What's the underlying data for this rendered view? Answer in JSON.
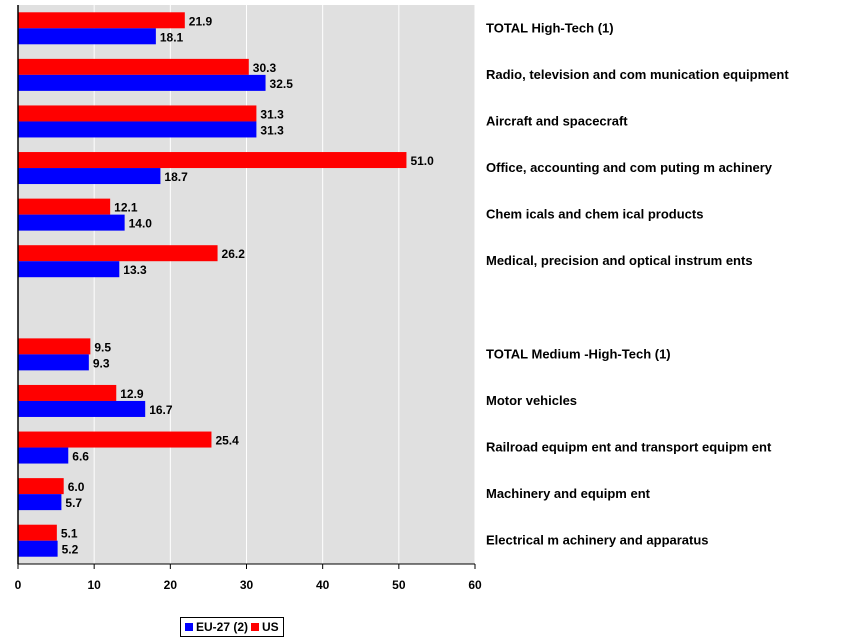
{
  "chart_data": {
    "type": "bar",
    "orientation": "horizontal",
    "categories": [
      "TOTAL High-Tech (1)",
      "Radio, television and com munication equipment",
      "Aircraft and spacecraft",
      "Office, accounting and com puting m achinery",
      "Chem icals and chem ical products",
      "Medical, precision and optical instrum ents",
      "",
      "TOTAL Medium -High-Tech (1)",
      "Motor vehicles",
      "Railroad equipm ent and transport equipm ent",
      "Machinery and equipm ent",
      "Electrical m achinery and apparatus"
    ],
    "series": [
      {
        "name": "US",
        "color": "#ff0000",
        "values": [
          21.9,
          30.3,
          31.3,
          51.0,
          12.1,
          26.2,
          null,
          9.5,
          12.9,
          25.4,
          6.0,
          5.1
        ],
        "labels": [
          "21.9",
          "30.3",
          "31.3",
          "51.0",
          "12.1",
          "26.2",
          "",
          "9.5",
          "12.9",
          "25.4",
          "6.0",
          "5.1"
        ]
      },
      {
        "name": "EU-27 (2)",
        "color": "#0000ff",
        "values": [
          18.1,
          32.5,
          31.3,
          18.7,
          14.0,
          13.3,
          null,
          9.3,
          16.7,
          6.6,
          5.7,
          5.2
        ],
        "labels": [
          "18.1",
          "32.5",
          "31.3",
          "18.7",
          "14.0",
          "13.3",
          "",
          "9.3",
          "16.7",
          "6.6",
          "5.7",
          "5.2"
        ]
      }
    ],
    "xlim": [
      0,
      60
    ],
    "xticks": [
      "0",
      "10",
      "20",
      "30",
      "40",
      "50",
      "60"
    ],
    "title": "",
    "xlabel": "",
    "ylabel": "",
    "grid": true,
    "plot_background": "#e0e0e0",
    "legend": {
      "placement": "bottom",
      "items": [
        {
          "name": "EU-27 (2)",
          "color": "#0000ff"
        },
        {
          "name": "US",
          "color": "#ff0000"
        }
      ]
    }
  }
}
